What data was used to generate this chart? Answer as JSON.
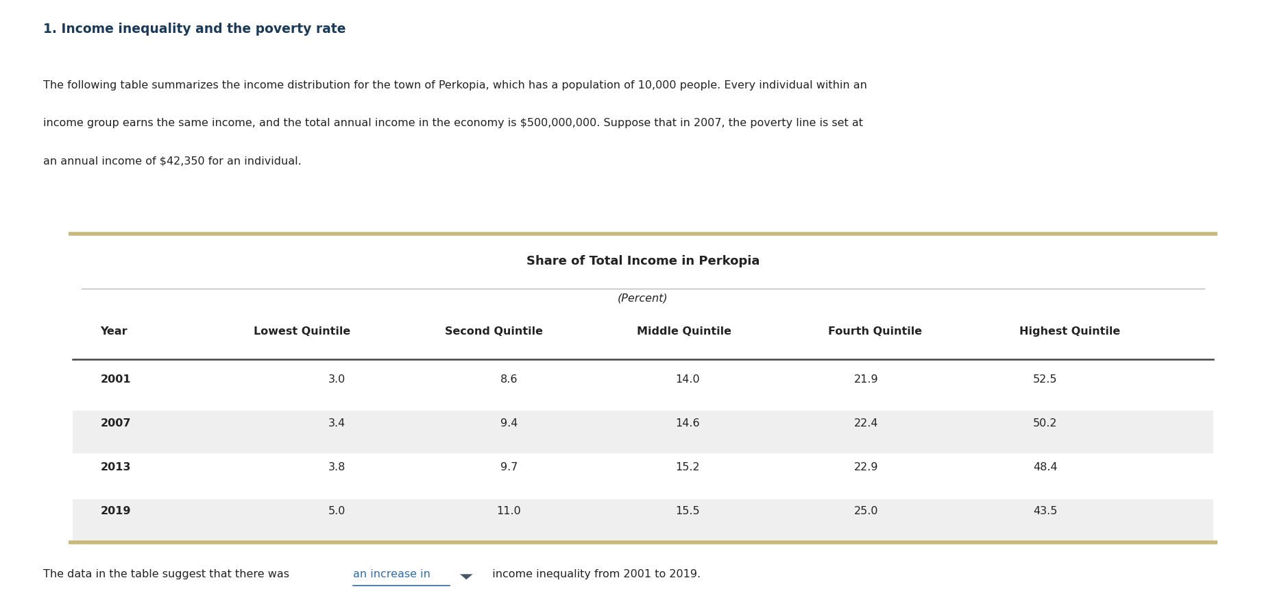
{
  "title": "1. Income inequality and the poverty rate",
  "para_line1": "The following table summarizes the income distribution for the town of Perkopia, which has a population of 10,000 people. Every individual within an",
  "para_line2": "income group earns the same income, and the total annual income in the economy is $500,000,000. Suppose that in 2007, the poverty line is set at",
  "para_line3": "an annual income of $42,350 for an individual.",
  "table_title": "Share of Total Income in Perkopia",
  "table_subtitle": "(Percent)",
  "col_headers": [
    "Year",
    "Lowest Quintile",
    "Second Quintile",
    "Middle Quintile",
    "Fourth Quintile",
    "Highest Quintile"
  ],
  "rows": [
    [
      "2001",
      "3.0",
      "8.6",
      "14.0",
      "21.9",
      "52.5"
    ],
    [
      "2007",
      "3.4",
      "9.4",
      "14.6",
      "22.4",
      "50.2"
    ],
    [
      "2013",
      "3.8",
      "9.7",
      "15.2",
      "22.9",
      "48.4"
    ],
    [
      "2019",
      "5.0",
      "11.0",
      "15.5",
      "25.0",
      "43.5"
    ]
  ],
  "footer_text_before": "The data in the table suggest that there was ",
  "footer_link": "an increase in",
  "footer_text_after": "  income inequality from 2001 to 2019.",
  "title_color": "#1a3a5c",
  "text_color": "#222222",
  "link_color": "#2a6db5",
  "table_border_color": "#c8b97a",
  "row_alt_color": "#efefef",
  "row_normal_color": "#ffffff",
  "header_line_color": "#444444",
  "background_color": "#ffffff"
}
